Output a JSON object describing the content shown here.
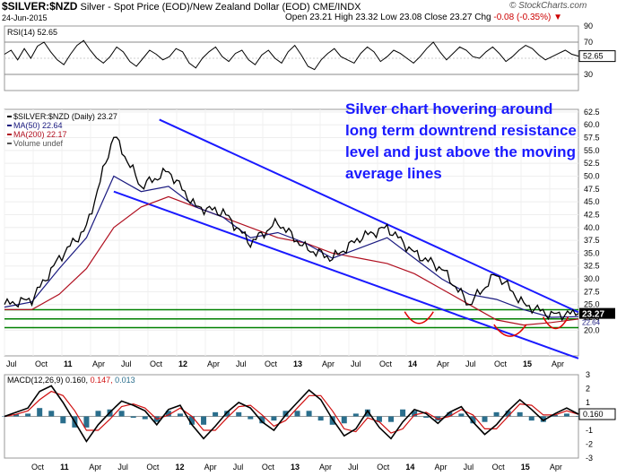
{
  "header": {
    "symbol": "$SILVER:$NZD",
    "description": "Silver - Spot Price (EOD)/New Zealand Dollar (EOD)",
    "exchange": "CME/INDX",
    "date": "24-Jun-2015",
    "ohlc": "Open 23.21  High 23.32  Low 23.08  Close 23.27  Chg",
    "chg": "-0.08 (-0.35%)",
    "chg_marker": "▼",
    "brand": "© StockCharts.com"
  },
  "annotation": "Silver chart hovering around long term downtrend resistance level and just above the moving average lines",
  "colors": {
    "price": "#000000",
    "ma50": "#1a1a80",
    "ma200": "#b01020",
    "channel": "#1a1aff",
    "support": "#008000",
    "arc": "#e00000",
    "rsi": "#000000",
    "macd": "#000000",
    "signal": "#d01010",
    "hist": "#2a6e8c"
  },
  "chart_data": [
    {
      "type": "line",
      "panel": "RSI",
      "legend": "RSI(14) 52.65",
      "last_value": "52.65",
      "ylim": [
        10,
        90
      ],
      "y_ticks": [
        "90",
        "70",
        "50",
        "30"
      ],
      "ref_lines": [
        70,
        30
      ],
      "values": [
        55,
        60,
        48,
        62,
        50,
        65,
        70,
        58,
        48,
        42,
        55,
        66,
        72,
        60,
        50,
        44,
        52,
        64,
        58,
        46,
        40,
        50,
        60,
        55,
        48,
        52,
        62,
        58,
        44,
        38,
        50,
        58,
        64,
        52,
        46,
        56,
        60,
        48,
        42,
        54,
        60,
        50,
        44,
        58,
        66,
        54,
        40,
        36,
        48,
        56,
        62,
        52,
        48,
        44,
        56,
        64,
        58,
        46,
        52,
        60,
        56,
        50,
        44,
        52,
        62,
        70,
        58,
        48,
        56,
        64,
        60,
        52,
        50,
        58,
        64,
        56,
        46,
        52,
        60,
        66,
        62,
        54,
        48,
        52,
        56,
        60,
        55,
        52.65
      ]
    },
    {
      "type": "line",
      "panel": "price",
      "title": "$SILVER:$NZD (Daily) 23.27",
      "series_labels": [
        "$SILVER:$NZD (Daily) 23.27",
        "MA(50) 22.64",
        "MA(200) 22.17",
        "Volume undef"
      ],
      "ylim": [
        15,
        63
      ],
      "y_ticks": [
        "62.5",
        "60.0",
        "57.5",
        "55.0",
        "52.5",
        "50.0",
        "47.5",
        "45.0",
        "42.5",
        "40.0",
        "37.5",
        "35.0",
        "32.5",
        "30.0",
        "27.5",
        "25.0",
        "22.5",
        "20.0"
      ],
      "last_value": "23.27",
      "ma50_value": "22.64",
      "ma200_value": "22.17",
      "x_ticks": [
        "Jul",
        "Oct",
        "11",
        "Apr",
        "Jul",
        "Oct",
        "12",
        "Apr",
        "Jul",
        "Oct",
        "13",
        "Apr",
        "Jul",
        "Oct",
        "14",
        "Apr",
        "Jul",
        "Oct",
        "15",
        "Apr"
      ],
      "x": [
        0,
        3,
        6,
        9,
        12,
        15,
        18,
        21,
        24,
        27,
        30,
        33,
        36,
        39,
        42,
        45,
        48,
        51,
        54,
        57,
        60,
        63
      ],
      "close": [
        25,
        26,
        34,
        40,
        58,
        48,
        51,
        44,
        43,
        37,
        41,
        36,
        34,
        38,
        40,
        35,
        32,
        25,
        31,
        25,
        23,
        23.27
      ],
      "ma50": [
        24.5,
        25.5,
        32,
        38,
        50,
        47,
        48,
        44,
        42,
        38,
        39,
        37,
        34,
        36,
        38,
        34,
        30,
        27,
        26,
        24,
        22.5,
        22.64
      ],
      "ma200": [
        24,
        24,
        27,
        32,
        40,
        44,
        46,
        44,
        42,
        40,
        38,
        37,
        35,
        34,
        33,
        31,
        28,
        25,
        22,
        21,
        21.5,
        22.17
      ],
      "support_levels": [
        24.0,
        22.2,
        20.5
      ]
    },
    {
      "type": "line",
      "panel": "MACD",
      "legend_label": "MACD(12,26,9)",
      "legend_macd": "0.160",
      "legend_signal": "0.147",
      "legend_hist": "0.013",
      "last_value": "0.160",
      "ylim": [
        -3,
        3
      ],
      "y_ticks": [
        "3",
        "2",
        "1",
        "0",
        "-1",
        "-2",
        "-3"
      ],
      "macd": [
        0,
        0.3,
        0.6,
        1.8,
        2.2,
        1.0,
        -0.4,
        -1.8,
        -0.6,
        0.3,
        1.1,
        0.8,
        0.4,
        -0.6,
        0.5,
        0.8,
        -0.6,
        -1.6,
        -0.7,
        0.3,
        1.0,
        0.6,
        -0.4,
        -1.0,
        0.1,
        1.0,
        1.9,
        1.2,
        -0.2,
        -1.4,
        -0.9,
        0.4,
        -0.8,
        -1.6,
        -0.4,
        0.5,
        0.2,
        -0.5,
        0.3,
        0.7,
        -0.4,
        -1.3,
        -0.6,
        0.4,
        1.2,
        0.5,
        -0.3,
        0.2,
        0.6,
        0.16
      ],
      "signal": [
        0,
        0.15,
        0.4,
        1.2,
        1.8,
        1.5,
        0.4,
        -1.0,
        -1.0,
        -0.2,
        0.7,
        0.9,
        0.6,
        -0.2,
        0.1,
        0.6,
        0.0,
        -1.0,
        -1.0,
        -0.1,
        0.7,
        0.8,
        0.1,
        -0.7,
        -0.3,
        0.6,
        1.5,
        1.5,
        0.4,
        -0.9,
        -1.1,
        -0.1,
        -0.4,
        -1.2,
        -0.9,
        0.1,
        0.3,
        -0.2,
        0.0,
        0.5,
        0.1,
        -0.9,
        -0.9,
        0.0,
        0.9,
        0.8,
        0.1,
        0.1,
        0.4,
        0.147
      ],
      "x_ticks": [
        "Oct",
        "11",
        "Apr",
        "Jul",
        "Oct",
        "12",
        "Apr",
        "Jul",
        "Oct",
        "13",
        "Apr",
        "Jul",
        "Oct",
        "14",
        "Apr",
        "Jul",
        "Oct",
        "15",
        "Apr"
      ]
    }
  ]
}
